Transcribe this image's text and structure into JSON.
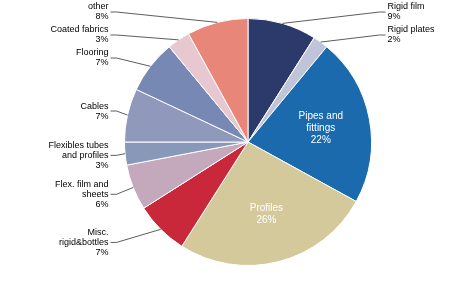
{
  "chart_data": {
    "type": "pie",
    "categories": [
      "Rigid film",
      "Rigid plates",
      "Pipes and\nfittings",
      "Profiles",
      "Misc.\nrigid&bottles",
      "Flex. film and\nsheets",
      "Flexibles tubes\nand profiles",
      "Cables",
      "Flooring",
      "Coated fabrics",
      "other"
    ],
    "values": [
      9,
      2,
      22,
      26,
      7,
      6,
      3,
      7,
      7,
      3,
      8
    ],
    "value_labels": [
      "9%",
      "2%",
      "22%",
      "26%",
      "7%",
      "6%",
      "3%",
      "7%",
      "7%",
      "3%",
      "8%"
    ],
    "data_labels": true,
    "colors": [
      "#2b3a6b",
      "#c0c4d8",
      "#1a6aad",
      "#d4c99a",
      "#c8283a",
      "#c4a8bc",
      "#8898b8",
      "#9098bc",
      "#7888b4",
      "#e8c8d0",
      "#e8867a"
    ],
    "legend": false
  }
}
